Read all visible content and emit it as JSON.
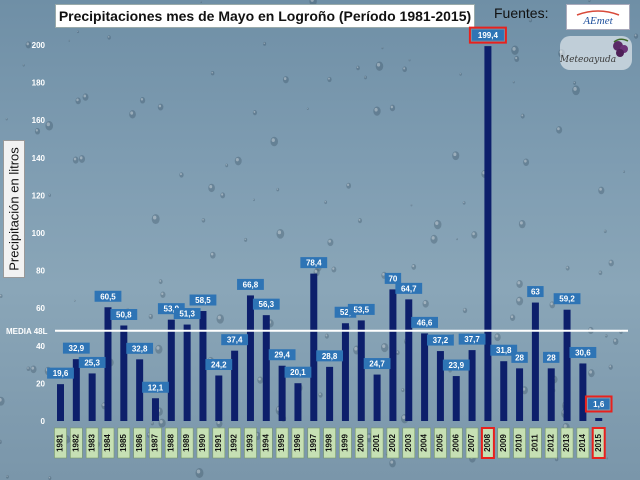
{
  "title": "Precipitaciones mes de Mayo en Logroño (Período 1981-2015)",
  "source_label": "Fuentes:",
  "logos": {
    "aemet": "AEMET",
    "meteo": "Meteoayuda"
  },
  "colors": {
    "bar": "#0d1f6b",
    "label_bg": "#2e74b5",
    "highlight": "#e8211d",
    "xlabel_bg": "#c6e0b4",
    "media_line": "#ffffff"
  },
  "chart_data": {
    "type": "bar",
    "title": "Precipitaciones mes de Mayo en Logroño (Período 1981-2015)",
    "xlabel": "",
    "ylabel": "Precipitación en litros",
    "ylim": [
      0,
      200
    ],
    "yticks": [
      0,
      20,
      40,
      60,
      80,
      100,
      120,
      140,
      160,
      180,
      200
    ],
    "grid": false,
    "categories": [
      "1981",
      "1982",
      "1983",
      "1984",
      "1985",
      "1986",
      "1987",
      "1988",
      "1989",
      "1990",
      "1991",
      "1992",
      "1993",
      "1994",
      "1995",
      "1996",
      "1997",
      "1998",
      "1999",
      "2000",
      "2001",
      "2002",
      "2003",
      "2004",
      "2005",
      "2006",
      "2007",
      "2008",
      "2009",
      "2010",
      "2011",
      "2012",
      "2013",
      "2014",
      "2015"
    ],
    "values": [
      19.6,
      32.9,
      25.3,
      60.5,
      50.8,
      32.8,
      12.1,
      53.9,
      51.3,
      58.5,
      24.2,
      37.4,
      66.8,
      56.3,
      29.4,
      20.1,
      78.4,
      28.8,
      52,
      53.5,
      24.7,
      70,
      64.7,
      46.6,
      37.2,
      23.9,
      37.7,
      199.4,
      31.8,
      28,
      63,
      28,
      59.2,
      30.6,
      1.6
    ],
    "value_labels": [
      "19,6",
      "32,9",
      "25,3",
      "60,5",
      "50,8",
      "32,8",
      "12,1",
      "53,9",
      "51,3",
      "58,5",
      "24,2",
      "37,4",
      "66,8",
      "56,3",
      "29,4",
      "20,1",
      "78,4",
      "28,8",
      "52,",
      "53,5",
      "24,7",
      "70",
      "64,7",
      "46,6",
      "37,2",
      "23,9",
      "37,7",
      "199,4",
      "31,8",
      "28",
      "63",
      "28",
      "59,2",
      "30,6",
      "1,6"
    ],
    "highlighted": [
      "2008",
      "2015"
    ],
    "annotations": [
      {
        "text": "MEDIA 48L",
        "y": 48
      }
    ]
  }
}
